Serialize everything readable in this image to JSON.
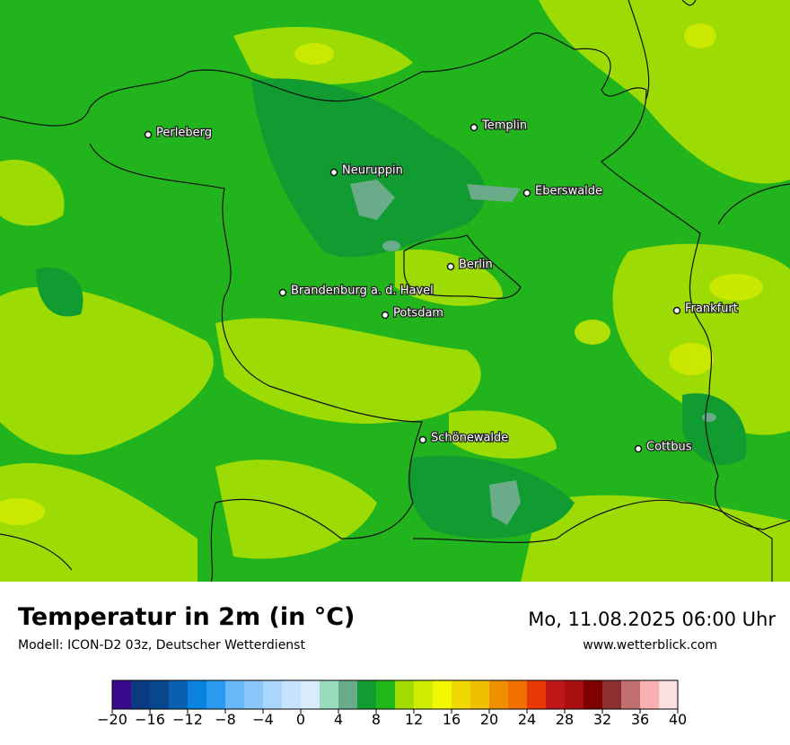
{
  "map": {
    "cities": [
      {
        "name": "Perleberg"
      },
      {
        "name": "Neuruppin"
      },
      {
        "name": "Templin"
      },
      {
        "name": "Eberswalde"
      },
      {
        "name": "Berlin"
      },
      {
        "name": "Brandenburg a. d. Havel"
      },
      {
        "name": "Potsdam"
      },
      {
        "name": "Frankfurt"
      },
      {
        "name": "Schönewalde"
      },
      {
        "name": "Cottbus"
      }
    ]
  },
  "title": "Temperatur in 2m (in °C)",
  "model": "Modell: ICON-D2 03z, Deutscher Wetterdienst",
  "datetime": "Mo, 11.08.2025 06:00 Uhr",
  "website": "www.wetterblick.com",
  "colorbar": {
    "range": [
      -20,
      40
    ],
    "colors": [
      "#3a0a8c",
      "#0a3a80",
      "#08478e",
      "#0a5fb0",
      "#0a82e0",
      "#2a9af0",
      "#6ab8f8",
      "#8ac6fa",
      "#a8d6fc",
      "#c6e2fc",
      "#d8ecfc",
      "#98dcc0",
      "#6aac8a",
      "#109c30",
      "#20b818",
      "#a0dc00",
      "#d0ec00",
      "#f0f800",
      "#f0d800",
      "#f0c000",
      "#f09000",
      "#f07000",
      "#e83808",
      "#c01818",
      "#a81010",
      "#800000",
      "#8c3030",
      "#c07070",
      "#f8b0b0",
      "#fce0e0"
    ],
    "ticks": [
      {
        "value": -20,
        "label": "−20"
      },
      {
        "value": -16,
        "label": "−16"
      },
      {
        "value": -12,
        "label": "−12"
      },
      {
        "value": -8,
        "label": "−8"
      },
      {
        "value": -4,
        "label": "−4"
      },
      0,
      4,
      8,
      12,
      16,
      20,
      24,
      28,
      32,
      36,
      40
    ]
  }
}
